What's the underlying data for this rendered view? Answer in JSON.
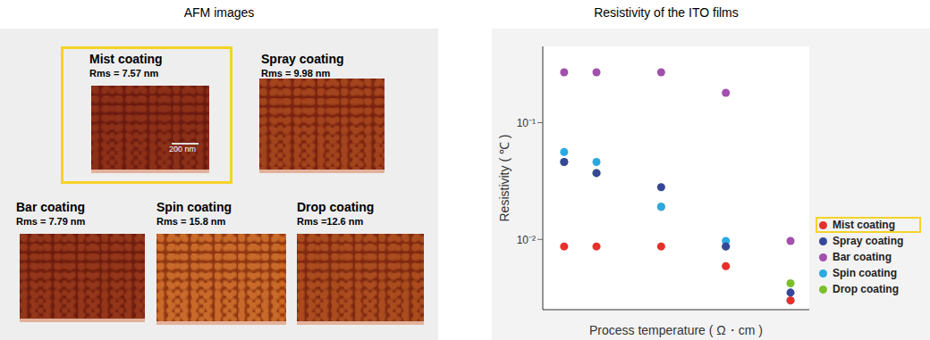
{
  "highlighted": "Mist coating",
  "afm_panel": {
    "title": "AFM images",
    "scale_bar": "200 nm",
    "images": [
      {
        "label": "Mist coating",
        "rms": "Rms = 7.57 nm"
      },
      {
        "label": "Spray coating",
        "rms": "Rms = 9.98 nm"
      },
      {
        "label": "Bar coating",
        "rms": "Rms = 7.79 nm"
      },
      {
        "label": "Spin coating",
        "rms": "Rms = 15.8 nm"
      },
      {
        "label": "Drop coating",
        "rms": "Rms =12.6 nm"
      }
    ]
  },
  "chart_data": {
    "type": "scatter",
    "title": "Resistivity of the ITO films",
    "x_label": "Process temperature ( Ω・cm )",
    "y_label": "Resistivity ( ℃ )",
    "log": "y",
    "grid": false,
    "legend": "right",
    "tick_labels": "y",
    "marker": "circle",
    "xlim": [
      117,
      529
    ],
    "ylim": [
      0.0025,
      0.45
    ],
    "yticks": [
      {
        "value": 0.01,
        "label": "10⁻²"
      },
      {
        "value": 0.1,
        "label": "10⁻¹"
      }
    ],
    "x": [
      150,
      200,
      300,
      400,
      500
    ],
    "series": [
      {
        "name": "Mist coating",
        "color": "#e8302a",
        "values": [
          0.0087,
          0.0087,
          0.0087,
          0.0059,
          0.003
        ]
      },
      {
        "name": "Spray coating",
        "color": "#36479a",
        "values": [
          0.046,
          0.037,
          0.028,
          0.0087,
          0.0035
        ]
      },
      {
        "name": "Bar coating",
        "color": "#a24fae",
        "values": [
          0.27,
          0.27,
          0.27,
          0.18,
          0.0097
        ]
      },
      {
        "name": "Spin coating",
        "color": "#2ba9e1",
        "values": [
          0.056,
          0.046,
          0.019,
          0.0097,
          0.003
        ]
      },
      {
        "name": "Drop coating",
        "color": "#7cbf2b",
        "values": [
          0.046,
          0.037,
          0.019,
          0.0087,
          0.0042
        ]
      }
    ]
  }
}
